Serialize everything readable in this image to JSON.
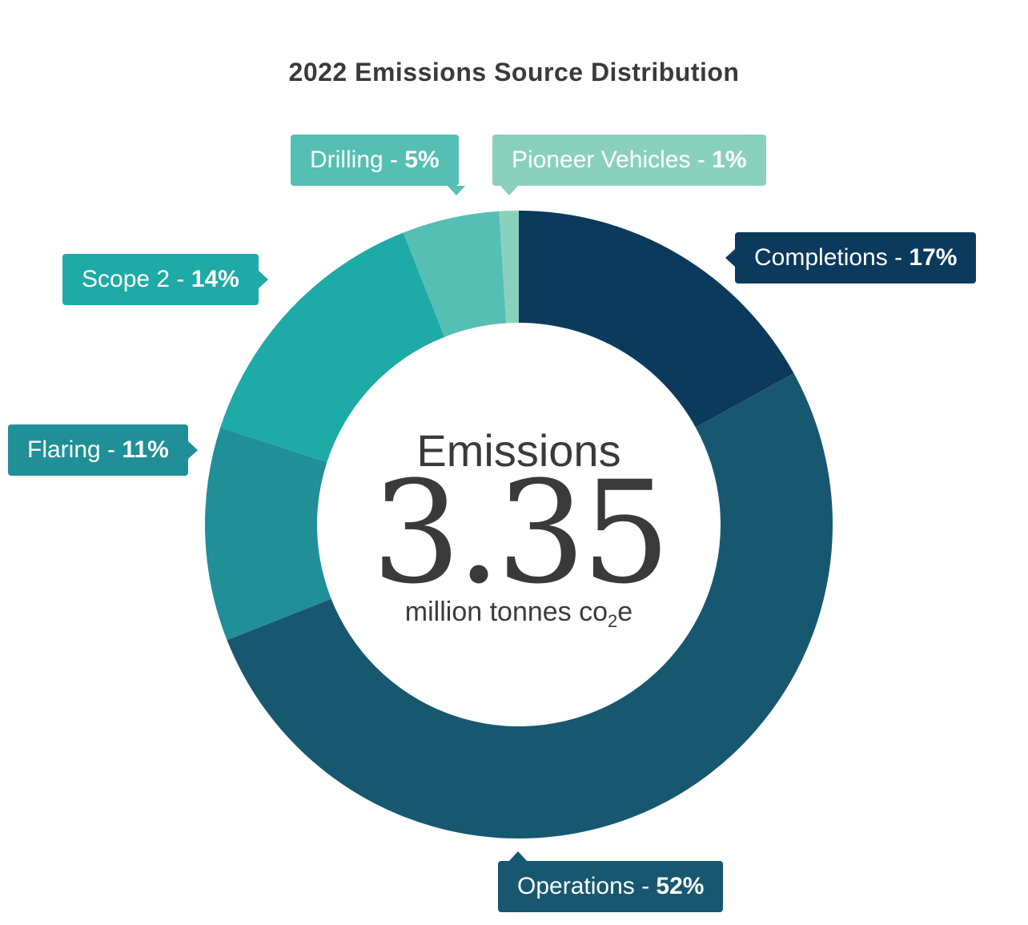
{
  "chart_data": {
    "type": "pie",
    "donut": true,
    "title": "2022 Emissions Source Distribution",
    "center": {
      "heading": "Emissions",
      "value": "3.35",
      "unit_prefix": "million tonnes co",
      "unit_subscript": "2",
      "unit_suffix": "e"
    },
    "slices": [
      {
        "label": "Completions",
        "value": 17,
        "display": "17%",
        "color": "#0b3a5d"
      },
      {
        "label": "Operations",
        "value": 52,
        "display": "52%",
        "color": "#175870"
      },
      {
        "label": "Flaring",
        "value": 11,
        "display": "11%",
        "color": "#208f97"
      },
      {
        "label": "Scope 2",
        "value": 14,
        "display": "14%",
        "color": "#1eaaa7"
      },
      {
        "label": "Drilling",
        "value": 5,
        "display": "5%",
        "color": "#55bfb4"
      },
      {
        "label": "Pioneer Vehicles",
        "value": 1,
        "display": "1%",
        "color": "#8ad1bd"
      }
    ],
    "legend": "callouts"
  }
}
